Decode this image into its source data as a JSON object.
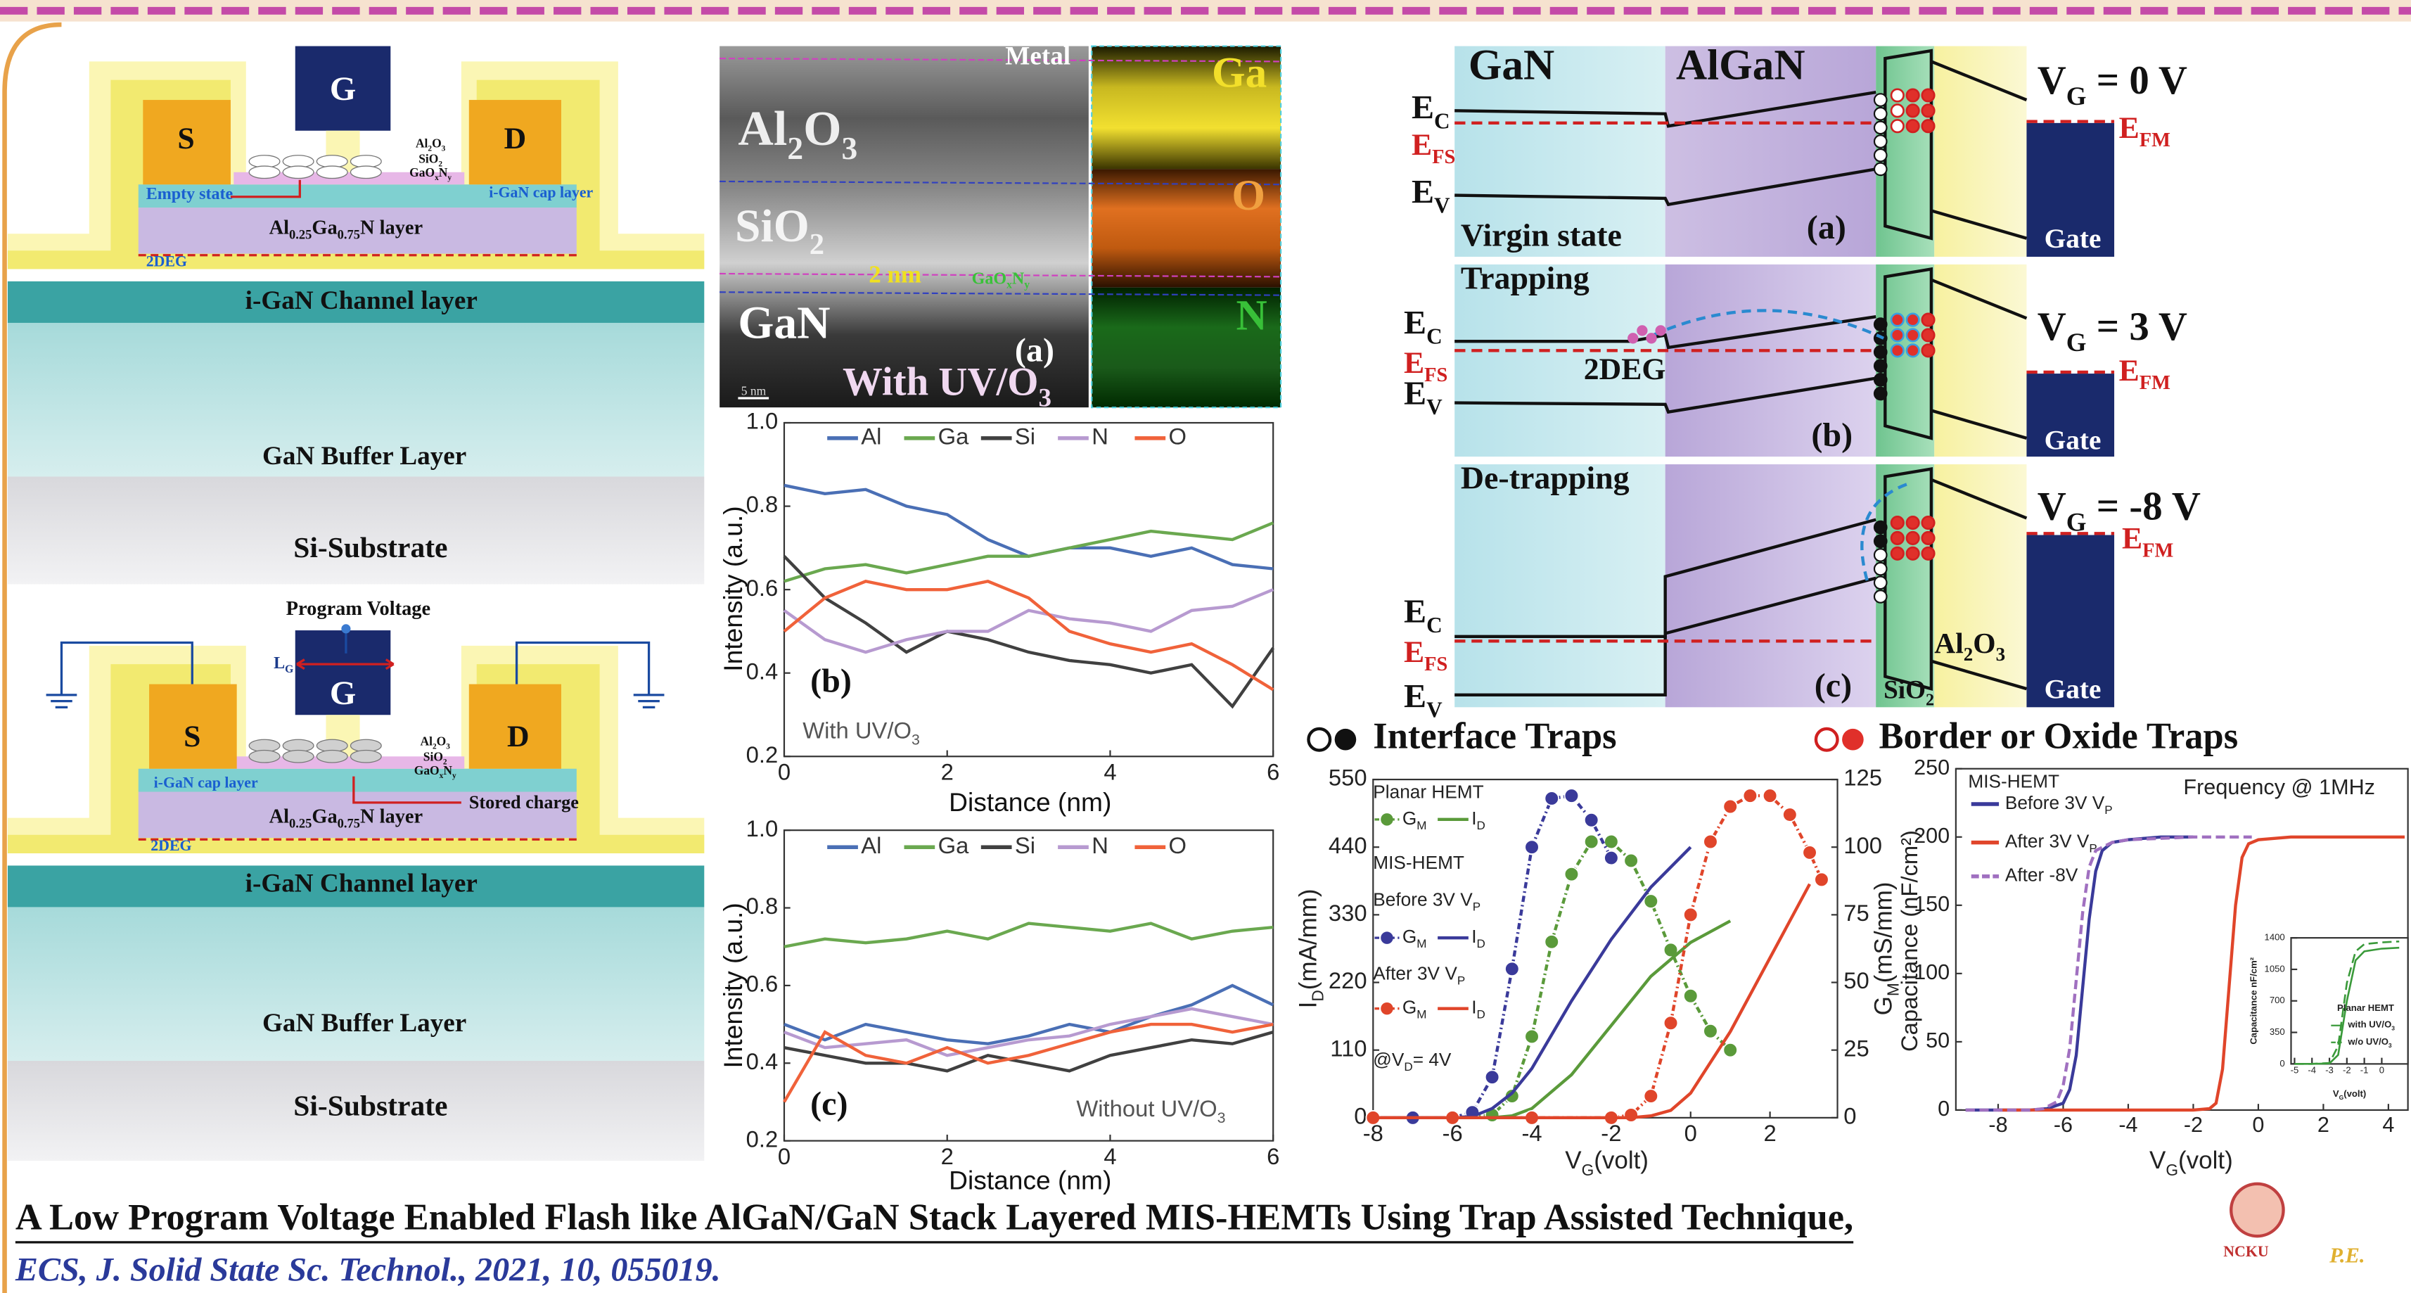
{
  "device_top": {
    "source": "S",
    "gate": "G",
    "drain": "D",
    "al2o3": [
      "Al",
      {
        "sub": "2"
      },
      "O",
      {
        "sub": "3"
      }
    ],
    "sio2": [
      "SiO",
      {
        "sub": "2"
      }
    ],
    "gaoxny": [
      "GaO",
      {
        "sub": "x"
      },
      "N",
      {
        "sub": "y"
      }
    ],
    "empty_state": "Empty state",
    "cap_layer": "i-GaN cap layer",
    "barrier": [
      "Al",
      {
        "sub": "0.25"
      },
      "Ga",
      {
        "sub": "0.75"
      },
      "N layer"
    ],
    "two_deg": "2DEG",
    "channel": "i-GaN Channel layer",
    "buffer": "GaN Buffer Layer",
    "substrate": "Si-Substrate"
  },
  "device_bottom": {
    "program_voltage": "Program Voltage",
    "gate_length": [
      "L",
      {
        "sub": "G"
      }
    ],
    "source": "S",
    "gate": "G",
    "drain": "D",
    "al2o3": [
      "Al",
      {
        "sub": "2"
      },
      "O",
      {
        "sub": "3"
      }
    ],
    "sio2": [
      "SiO",
      {
        "sub": "2"
      }
    ],
    "gaoxny": [
      "GaO",
      {
        "sub": "x"
      },
      "N",
      {
        "sub": "y"
      }
    ],
    "cap_layer": "i-GaN cap layer",
    "stored_charge": "Stored charge",
    "barrier": [
      "Al",
      {
        "sub": "0.25"
      },
      "Ga",
      {
        "sub": "0.75"
      },
      "N layer"
    ],
    "two_deg": "2DEG",
    "channel": "i-GaN Channel layer",
    "buffer": "GaN Buffer Layer",
    "substrate": "Si-Substrate"
  },
  "tem": {
    "metal": "Metal",
    "al2o3": [
      "Al",
      {
        "sub": "2"
      },
      "O",
      {
        "sub": "3"
      }
    ],
    "sio2": [
      "SiO",
      {
        "sub": "2"
      }
    ],
    "gan": "GaN",
    "thickness": "2 nm",
    "interlayer": [
      "GaO",
      {
        "sub": "x"
      },
      "N",
      {
        "sub": "y"
      }
    ],
    "panel": "(a)",
    "condition": [
      "With UV/O",
      {
        "sub": "3"
      }
    ],
    "scale_bar": "5 nm",
    "maps": [
      "Ga",
      "O",
      "N"
    ]
  },
  "band_diagram": {
    "regions": [
      "GaN",
      "AlGaN"
    ],
    "panels": [
      {
        "state": "Virgin state",
        "label": "(a)",
        "vg": [
          "V",
          {
            "sub": "G"
          },
          " = 0 V"
        ],
        "ec": [
          "E",
          {
            "sub": "C"
          }
        ],
        "efs": [
          "E",
          {
            "sub": "FS"
          }
        ],
        "ev": [
          "E",
          {
            "sub": "V"
          }
        ],
        "efm": [
          "E",
          {
            "sub": "FM"
          }
        ],
        "gate": "Gate"
      },
      {
        "state": "Trapping",
        "label": "(b)",
        "vg": [
          "V",
          {
            "sub": "G"
          },
          " = 3 V"
        ],
        "ec": [
          "E",
          {
            "sub": "C"
          }
        ],
        "efs": [
          "E",
          {
            "sub": "FS"
          }
        ],
        "ev": [
          "E",
          {
            "sub": "V"
          }
        ],
        "efm": [
          "E",
          {
            "sub": "FM"
          }
        ],
        "gate": "Gate",
        "extra": "2DEG"
      },
      {
        "state": "De-trapping",
        "label": "(c)",
        "vg": [
          "V",
          {
            "sub": "G"
          },
          " = -8 V"
        ],
        "ec": [
          "E",
          {
            "sub": "C"
          }
        ],
        "efs": [
          "E",
          {
            "sub": "FS"
          }
        ],
        "ev": [
          "E",
          {
            "sub": "V"
          }
        ],
        "efm": [
          "E",
          {
            "sub": "FM"
          }
        ],
        "gate": "Gate",
        "sio2": [
          "SiO",
          {
            "sub": "2"
          }
        ],
        "al2o3": [
          "Al",
          {
            "sub": "2"
          },
          "O",
          {
            "sub": "3"
          }
        ]
      }
    ]
  },
  "trap_legend": {
    "interface": "Interface Traps",
    "border": "Border or Oxide Traps"
  },
  "footer": {
    "title": "A Low Program Voltage Enabled Flash like AlGaN/GaN Stack Layered MIS-HEMTs Using Trap Assisted Technique,",
    "citation": "ECS, J. Solid State Sc. Technol., 2021, 10, 055019.",
    "logo": "NCKU",
    "logo_tag": "P.E."
  },
  "chart_data": [
    {
      "type": "line",
      "panel": "(b)",
      "note": [
        "With UV/O",
        {
          "sub": "3"
        }
      ],
      "x_label": "Distance (nm)",
      "y_label": "Intensity (a.u.)",
      "x": [
        0,
        0.5,
        1,
        1.5,
        2,
        2.5,
        3,
        3.5,
        4,
        4.5,
        5,
        5.5,
        6
      ],
      "xlim": [
        0,
        6
      ],
      "xticks": [
        0,
        2,
        4,
        6
      ],
      "ylim": [
        0.2,
        1.0
      ],
      "yticks": [
        0.2,
        0.4,
        0.6,
        0.8,
        {
          "value": 1.0,
          "label": "1.0"
        }
      ],
      "legend": "top",
      "series": [
        {
          "name": "Al",
          "color": "#4a6fb5",
          "values": [
            0.85,
            0.83,
            0.84,
            0.8,
            0.78,
            0.72,
            0.68,
            0.7,
            0.7,
            0.68,
            0.7,
            0.66,
            0.65
          ]
        },
        {
          "name": "Ga",
          "color": "#6aa84f",
          "values": [
            0.62,
            0.65,
            0.66,
            0.64,
            0.66,
            0.68,
            0.68,
            0.7,
            0.72,
            0.74,
            0.73,
            0.72,
            0.76
          ]
        },
        {
          "name": "Si",
          "color": "#404040",
          "values": [
            0.68,
            0.58,
            0.52,
            0.45,
            0.5,
            0.48,
            0.45,
            0.43,
            0.42,
            0.4,
            0.42,
            0.32,
            0.46
          ]
        },
        {
          "name": "N",
          "color": "#b79ad0",
          "values": [
            0.55,
            0.48,
            0.45,
            0.48,
            0.5,
            0.5,
            0.55,
            0.53,
            0.52,
            0.5,
            0.55,
            0.56,
            0.6
          ]
        },
        {
          "name": "O",
          "color": "#f0623a",
          "values": [
            0.5,
            0.58,
            0.62,
            0.6,
            0.6,
            0.62,
            0.58,
            0.5,
            0.47,
            0.45,
            0.47,
            0.42,
            0.36
          ]
        }
      ]
    },
    {
      "type": "line",
      "panel": "(c)",
      "note": [
        "Without UV/O",
        {
          "sub": "3"
        }
      ],
      "x_label": "Distance (nm)",
      "y_label": "Intensity (a.u.)",
      "x": [
        0,
        0.5,
        1,
        1.5,
        2,
        2.5,
        3,
        3.5,
        4,
        4.5,
        5,
        5.5,
        6
      ],
      "xlim": [
        0,
        6
      ],
      "xticks": [
        0,
        2,
        4,
        6
      ],
      "ylim": [
        0.2,
        1.0
      ],
      "yticks": [
        0.2,
        0.4,
        0.6,
        0.8,
        {
          "value": 1.0,
          "label": "1.0"
        }
      ],
      "legend": "top",
      "series": [
        {
          "name": "Al",
          "color": "#4a6fb5",
          "values": [
            0.5,
            0.46,
            0.5,
            0.48,
            0.46,
            0.45,
            0.47,
            0.5,
            0.48,
            0.52,
            0.55,
            0.6,
            0.55
          ]
        },
        {
          "name": "Ga",
          "color": "#6aa84f",
          "values": [
            0.7,
            0.72,
            0.71,
            0.72,
            0.74,
            0.72,
            0.76,
            0.75,
            0.74,
            0.76,
            0.72,
            0.74,
            0.75
          ]
        },
        {
          "name": "Si",
          "color": "#404040",
          "values": [
            0.44,
            0.42,
            0.4,
            0.4,
            0.38,
            0.42,
            0.4,
            0.38,
            0.42,
            0.44,
            0.46,
            0.45,
            0.48
          ]
        },
        {
          "name": "N",
          "color": "#b79ad0",
          "values": [
            0.48,
            0.44,
            0.45,
            0.46,
            0.42,
            0.44,
            0.46,
            0.47,
            0.5,
            0.52,
            0.54,
            0.52,
            0.5
          ]
        },
        {
          "name": "O",
          "color": "#f0623a",
          "values": [
            0.3,
            0.48,
            0.42,
            0.4,
            0.44,
            0.4,
            0.42,
            0.45,
            0.48,
            0.5,
            0.5,
            0.48,
            0.5
          ]
        }
      ]
    },
    {
      "type": "line",
      "x_label": [
        "V",
        {
          "sub": "G"
        },
        "(volt)"
      ],
      "y_label": [
        "I",
        {
          "sub": "D"
        },
        "(mA/mm)"
      ],
      "y2_label": [
        "G",
        {
          "sub": "M"
        },
        "(mS/mm)"
      ],
      "annotations": [
        "Planar HEMT",
        "MIS-HEMT",
        [
          "Before 3V V",
          {
            "sub": "P"
          }
        ],
        [
          "After 3V V",
          {
            "sub": "P"
          }
        ],
        [
          "@V",
          {
            "sub": "D"
          },
          "= 4V"
        ]
      ],
      "xlim": [
        -8,
        3.7
      ],
      "xticks": [
        -8,
        -6,
        -4,
        -2,
        0,
        2
      ],
      "ylim": [
        0,
        550
      ],
      "yticks": [
        0,
        110,
        220,
        330,
        440,
        550
      ],
      "y2lim": [
        0,
        125
      ],
      "y2ticks": [
        0,
        25,
        50,
        75,
        100,
        125
      ],
      "series": [
        {
          "name": [
            "G",
            {
              "sub": "M"
            }
          ],
          "color": "#5a9a3a",
          "axis": "y2",
          "marker": "circle",
          "x": [
            -8,
            -7,
            -6,
            -5,
            -4.5,
            -4,
            -3.5,
            -3,
            -2.5,
            -2,
            -1.5,
            -1,
            -0.5,
            0,
            0.5,
            1
          ],
          "values": [
            0,
            0,
            0,
            1,
            8,
            30,
            65,
            90,
            102,
            102,
            95,
            80,
            62,
            45,
            32,
            25
          ]
        },
        {
          "name": [
            "I",
            {
              "sub": "D"
            }
          ],
          "color": "#5a9a3a",
          "x": [
            -8,
            -5,
            -4.5,
            -4,
            -3,
            -2,
            -1,
            0,
            1
          ],
          "values": [
            0,
            0,
            3,
            15,
            70,
            150,
            230,
            285,
            320
          ]
        },
        {
          "name": [
            "G",
            {
              "sub": "M"
            }
          ],
          "color": "#3a3a9a",
          "axis": "y2",
          "marker": "circle",
          "x": [
            -8,
            -7,
            -6,
            -5.5,
            -5,
            -4.5,
            -4,
            -3.5,
            -3,
            -2.5,
            -2
          ],
          "values": [
            0,
            0,
            0,
            2,
            15,
            55,
            100,
            118,
            119,
            110,
            96
          ]
        },
        {
          "name": [
            "I",
            {
              "sub": "D"
            }
          ],
          "color": "#3a3a9a",
          "x": [
            -8,
            -6,
            -5.5,
            -5,
            -4.5,
            -4,
            -3,
            -2,
            -1,
            0
          ],
          "values": [
            0,
            0,
            2,
            15,
            40,
            80,
            190,
            290,
            375,
            440
          ]
        },
        {
          "name": [
            "G",
            {
              "sub": "M"
            }
          ],
          "color": "#e0452a",
          "axis": "y2",
          "marker": "circle",
          "x": [
            -8,
            -6,
            -4,
            -2,
            -1.5,
            -1,
            -0.5,
            0,
            0.5,
            1,
            1.5,
            2,
            2.5,
            3,
            3.3
          ],
          "values": [
            0,
            0,
            0,
            0,
            1,
            8,
            35,
            75,
            102,
            115,
            119,
            119,
            112,
            98,
            88
          ]
        },
        {
          "name": [
            "I",
            {
              "sub": "D"
            }
          ],
          "color": "#e0452a",
          "x": [
            -8,
            -1.5,
            -1,
            -0.5,
            0,
            1,
            2,
            3
          ],
          "values": [
            0,
            0,
            3,
            12,
            40,
            140,
            260,
            380
          ]
        }
      ]
    },
    {
      "type": "line",
      "x_label": [
        "V",
        {
          "sub": "G"
        },
        "(volt)"
      ],
      "y_label": "Capacitance (nF/cm²)",
      "annotations": [
        "MIS-HEMT",
        "Frequency @ 1MHz"
      ],
      "xlim": [
        -9.3,
        4.6
      ],
      "xticks": [
        -8,
        -6,
        -4,
        -2,
        0,
        2,
        4
      ],
      "ylim": [
        0,
        250
      ],
      "yticks": [
        0,
        50,
        100,
        150,
        200,
        250
      ],
      "series": [
        {
          "name": [
            "Before 3V V",
            {
              "sub": "P"
            }
          ],
          "color": "#3a3a9a",
          "x": [
            -9,
            -7,
            -6.5,
            -6,
            -5.8,
            -5.6,
            -5.4,
            -5.2,
            -5,
            -4.8,
            -4.5,
            -4,
            -3,
            -2
          ],
          "values": [
            0,
            0,
            1,
            5,
            15,
            40,
            90,
            140,
            175,
            190,
            196,
            198,
            200,
            200
          ]
        },
        {
          "name": [
            "After 3V V",
            {
              "sub": "P"
            }
          ],
          "color": "#e0452a",
          "x": [
            -8,
            -2,
            -1.5,
            -1.3,
            -1.1,
            -0.9,
            -0.7,
            -0.5,
            -0.3,
            0,
            1,
            2,
            3,
            4.5
          ],
          "values": [
            0,
            0,
            1,
            5,
            30,
            90,
            150,
            185,
            195,
            198,
            200,
            200,
            200,
            200
          ]
        },
        {
          "name": "After -8V",
          "color": "#a070c0",
          "dash": true,
          "x": [
            -9,
            -7,
            -6.6,
            -6.2,
            -6,
            -5.8,
            -5.6,
            -5.4,
            -5.2,
            -5,
            -4.5,
            -4,
            -3,
            -2,
            -1,
            -0.2
          ],
          "values": [
            0,
            0,
            1,
            6,
            18,
            45,
            95,
            145,
            178,
            190,
            196,
            198,
            199,
            200,
            200,
            200
          ]
        }
      ]
    },
    {
      "type": "line",
      "x_label": [
        "V",
        {
          "sub": "G"
        },
        "(volt)"
      ],
      "y_label": "Capacitance nF/cm²",
      "annotations": [
        "Planar HEMT"
      ],
      "xlim": [
        -5.2,
        1.5
      ],
      "xticks": [
        -5,
        -4,
        -3,
        -2,
        -1,
        0
      ],
      "ylim": [
        0,
        1400
      ],
      "yticks": [
        0,
        350,
        700,
        1050,
        1400
      ],
      "series": [
        {
          "name": [
            "with UV/O",
            {
              "sub": "3"
            }
          ],
          "color": "#3a9a3a",
          "x": [
            -5,
            -4,
            -3,
            -2.5,
            -2,
            -1.5,
            -1,
            0,
            1
          ],
          "values": [
            0,
            0,
            5,
            100,
            700,
            1150,
            1250,
            1280,
            1290
          ]
        },
        {
          "name": [
            "w/o UV/O",
            {
              "sub": "3"
            }
          ],
          "color": "#3a9a3a",
          "dash": true,
          "x": [
            -5,
            -4,
            -3,
            -2.5,
            -2,
            -1.5,
            -1,
            0,
            1
          ],
          "values": [
            0,
            0,
            10,
            200,
            900,
            1250,
            1330,
            1350,
            1360
          ]
        }
      ]
    }
  ]
}
